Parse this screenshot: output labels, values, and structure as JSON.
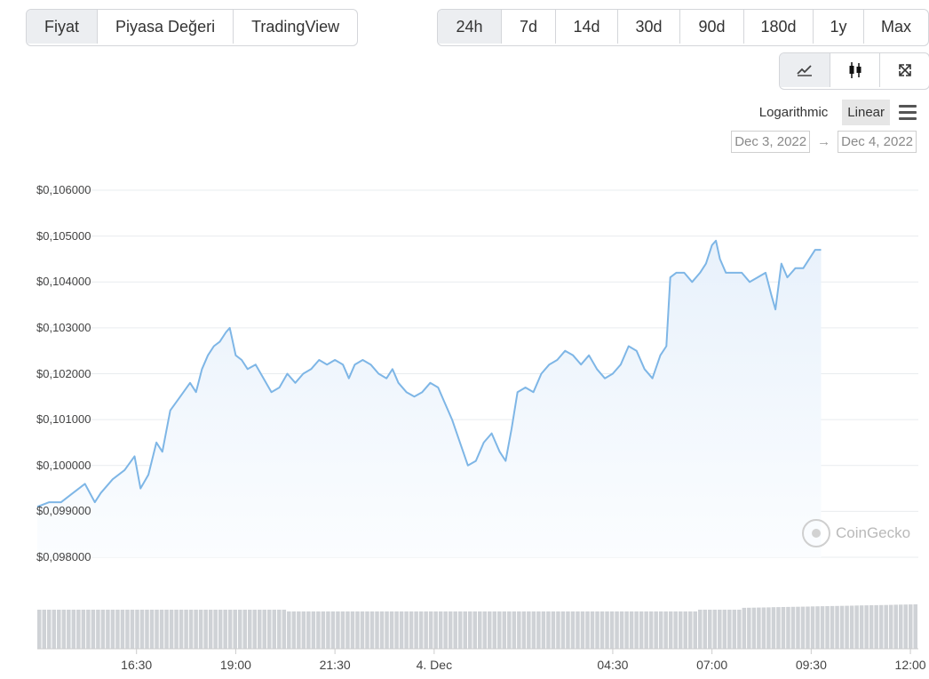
{
  "tabs": {
    "active": "Fiyat",
    "items": [
      {
        "label": "Fiyat"
      },
      {
        "label": "Piyasa Değeri"
      },
      {
        "label": "TradingView"
      }
    ]
  },
  "ranges": {
    "active": "24h",
    "items": [
      {
        "label": "24h"
      },
      {
        "label": "7d"
      },
      {
        "label": "14d"
      },
      {
        "label": "30d"
      },
      {
        "label": "90d"
      },
      {
        "label": "180d"
      },
      {
        "label": "1y"
      },
      {
        "label": "Max"
      }
    ]
  },
  "chart_view": {
    "buttons": [
      {
        "icon": "line-chart-icon"
      },
      {
        "icon": "candlestick-icon"
      },
      {
        "icon": "expand-icon"
      }
    ]
  },
  "scale": {
    "logarithmic_label": "Logarithmic",
    "linear_label": "Linear",
    "active": "Linear"
  },
  "date_range": {
    "from": "Dec 3, 2022",
    "arrow": "→",
    "to": "Dec 4, 2022"
  },
  "watermark": {
    "label": "CoinGecko"
  },
  "colors": {
    "line": "#7eb6e6",
    "area_top": "#e8f1fb",
    "volume": "#cfd2d6",
    "grid": "#e9ecef"
  },
  "chart_data": {
    "type": "area",
    "title": "",
    "xlabel": "",
    "ylabel": "",
    "y_tick_labels": [
      "$0,106000",
      "$0,105000",
      "$0,104000",
      "$0,103000",
      "$0,102000",
      "$0,101000",
      "$0,100000",
      "$0,099000",
      "$0,098000"
    ],
    "y_ticks": [
      0.106,
      0.105,
      0.104,
      0.103,
      0.102,
      0.101,
      0.1,
      0.099,
      0.098
    ],
    "ylim": [
      0.098,
      0.106
    ],
    "x_tick_labels": [
      "16:30",
      "19:00",
      "21:30",
      "4. Dec",
      "04:30",
      "07:00",
      "09:30",
      "12:00"
    ],
    "x_ticks_hours": [
      16.5,
      19,
      21.5,
      24,
      28.5,
      31,
      33.5,
      36
    ],
    "x_range_hours": [
      14.0,
      36.2
    ],
    "grid": true,
    "legend": "none",
    "series": [
      {
        "points_hours": [
          [
            14.0,
            0.0991
          ],
          [
            14.3,
            0.0992
          ],
          [
            14.6,
            0.0992
          ],
          [
            14.9,
            0.0994
          ],
          [
            15.2,
            0.0996
          ],
          [
            15.45,
            0.0992
          ],
          [
            15.6,
            0.0994
          ],
          [
            15.9,
            0.0997
          ],
          [
            16.2,
            0.0999
          ],
          [
            16.45,
            0.1002
          ],
          [
            16.6,
            0.0995
          ],
          [
            16.8,
            0.0998
          ],
          [
            17.0,
            0.1005
          ],
          [
            17.15,
            0.1003
          ],
          [
            17.35,
            0.1012
          ],
          [
            17.6,
            0.1015
          ],
          [
            17.85,
            0.1018
          ],
          [
            18.0,
            0.1016
          ],
          [
            18.15,
            0.1021
          ],
          [
            18.3,
            0.1024
          ],
          [
            18.45,
            0.1026
          ],
          [
            18.6,
            0.1027
          ],
          [
            18.75,
            0.1029
          ],
          [
            18.85,
            0.103
          ],
          [
            19.0,
            0.1024
          ],
          [
            19.15,
            0.1023
          ],
          [
            19.3,
            0.1021
          ],
          [
            19.5,
            0.1022
          ],
          [
            19.7,
            0.1019
          ],
          [
            19.9,
            0.1016
          ],
          [
            20.1,
            0.1017
          ],
          [
            20.3,
            0.102
          ],
          [
            20.5,
            0.1018
          ],
          [
            20.7,
            0.102
          ],
          [
            20.9,
            0.1021
          ],
          [
            21.1,
            0.1023
          ],
          [
            21.3,
            0.1022
          ],
          [
            21.5,
            0.1023
          ],
          [
            21.7,
            0.1022
          ],
          [
            21.85,
            0.1019
          ],
          [
            22.0,
            0.1022
          ],
          [
            22.2,
            0.1023
          ],
          [
            22.4,
            0.1022
          ],
          [
            22.6,
            0.102
          ],
          [
            22.8,
            0.1019
          ],
          [
            22.95,
            0.1021
          ],
          [
            23.1,
            0.1018
          ],
          [
            23.3,
            0.1016
          ],
          [
            23.5,
            0.1015
          ],
          [
            23.7,
            0.1016
          ],
          [
            23.9,
            0.1018
          ],
          [
            24.1,
            0.1017
          ],
          [
            24.25,
            0.1014
          ],
          [
            24.45,
            0.101
          ],
          [
            24.65,
            0.1005
          ],
          [
            24.85,
            0.1
          ],
          [
            25.05,
            0.1001
          ],
          [
            25.25,
            0.1005
          ],
          [
            25.45,
            0.1007
          ],
          [
            25.65,
            0.1003
          ],
          [
            25.8,
            0.1001
          ],
          [
            25.95,
            0.1008
          ],
          [
            26.1,
            0.1016
          ],
          [
            26.3,
            0.1017
          ],
          [
            26.5,
            0.1016
          ],
          [
            26.7,
            0.102
          ],
          [
            26.9,
            0.1022
          ],
          [
            27.1,
            0.1023
          ],
          [
            27.3,
            0.1025
          ],
          [
            27.5,
            0.1024
          ],
          [
            27.7,
            0.1022
          ],
          [
            27.9,
            0.1024
          ],
          [
            28.1,
            0.1021
          ],
          [
            28.3,
            0.1019
          ],
          [
            28.5,
            0.102
          ],
          [
            28.7,
            0.1022
          ],
          [
            28.9,
            0.1026
          ],
          [
            29.1,
            0.1025
          ],
          [
            29.3,
            0.1021
          ],
          [
            29.5,
            0.1019
          ],
          [
            29.7,
            0.1024
          ],
          [
            29.85,
            0.1026
          ],
          [
            29.95,
            0.1041
          ],
          [
            30.1,
            0.1042
          ],
          [
            30.3,
            0.1042
          ],
          [
            30.5,
            0.104
          ],
          [
            30.7,
            0.1042
          ],
          [
            30.85,
            0.1044
          ],
          [
            31.0,
            0.1048
          ],
          [
            31.1,
            0.1049
          ],
          [
            31.2,
            0.1045
          ],
          [
            31.35,
            0.1042
          ],
          [
            31.55,
            0.1042
          ],
          [
            31.75,
            0.1042
          ],
          [
            31.95,
            0.104
          ],
          [
            32.15,
            0.1041
          ],
          [
            32.35,
            0.1042
          ],
          [
            32.5,
            0.1037
          ],
          [
            32.6,
            0.1034
          ],
          [
            32.75,
            0.1044
          ],
          [
            32.9,
            0.1041
          ],
          [
            33.1,
            0.1043
          ],
          [
            33.3,
            0.1043
          ],
          [
            33.45,
            0.1045
          ],
          [
            33.6,
            0.1047
          ],
          [
            33.75,
            0.1047
          ]
        ]
      }
    ],
    "volume_bars": 180
  }
}
